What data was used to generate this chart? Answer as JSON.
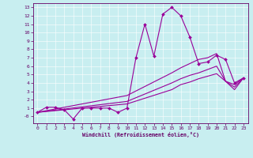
{
  "xlabel": "Windchill (Refroidissement éolien,°C)",
  "background_color": "#c8eef0",
  "line_color": "#990099",
  "xlim": [
    -0.5,
    23.5
  ],
  "ylim": [
    -0.8,
    13.5
  ],
  "xticks": [
    0,
    1,
    2,
    3,
    4,
    5,
    6,
    7,
    8,
    9,
    10,
    11,
    12,
    13,
    14,
    15,
    16,
    17,
    18,
    19,
    20,
    21,
    22,
    23
  ],
  "yticks": [
    0,
    1,
    2,
    3,
    4,
    5,
    6,
    7,
    8,
    9,
    10,
    11,
    12,
    13
  ],
  "ytick_labels": [
    "-0",
    "1",
    "2",
    "3",
    "4",
    "5",
    "6",
    "7",
    "8",
    "9",
    "10",
    "11",
    "12",
    "13"
  ],
  "series": [
    {
      "x": [
        0,
        1,
        2,
        3,
        4,
        5,
        6,
        7,
        8,
        9,
        10,
        11,
        12,
        13,
        14,
        15,
        16,
        17,
        18,
        19,
        20,
        21,
        22,
        23
      ],
      "y": [
        0.5,
        1.1,
        1.1,
        0.8,
        -0.3,
        1.0,
        1.0,
        1.0,
        1.0,
        0.5,
        1.0,
        7.0,
        11.0,
        7.2,
        12.2,
        13.0,
        12.0,
        9.5,
        6.3,
        6.5,
        7.3,
        6.8,
        4.0,
        4.6
      ],
      "marker": "D",
      "markersize": 2.0,
      "lw": 0.8
    },
    {
      "x": [
        0,
        10,
        15,
        16,
        17,
        18,
        19,
        20,
        21,
        22,
        23
      ],
      "y": [
        0.5,
        2.5,
        5.2,
        5.8,
        6.3,
        6.8,
        7.0,
        7.5,
        4.2,
        3.8,
        4.6
      ],
      "marker": null,
      "markersize": 0,
      "lw": 0.8
    },
    {
      "x": [
        0,
        10,
        15,
        16,
        17,
        18,
        19,
        20,
        21,
        22,
        23
      ],
      "y": [
        0.5,
        1.8,
        4.0,
        4.5,
        4.9,
        5.2,
        5.6,
        6.0,
        4.2,
        3.5,
        4.6
      ],
      "marker": null,
      "markersize": 0,
      "lw": 0.8
    },
    {
      "x": [
        0,
        10,
        15,
        16,
        17,
        18,
        19,
        20,
        21,
        22,
        23
      ],
      "y": [
        0.5,
        1.5,
        3.2,
        3.8,
        4.1,
        4.5,
        4.8,
        5.1,
        4.2,
        3.2,
        4.6
      ],
      "marker": null,
      "markersize": 0,
      "lw": 0.8
    }
  ]
}
